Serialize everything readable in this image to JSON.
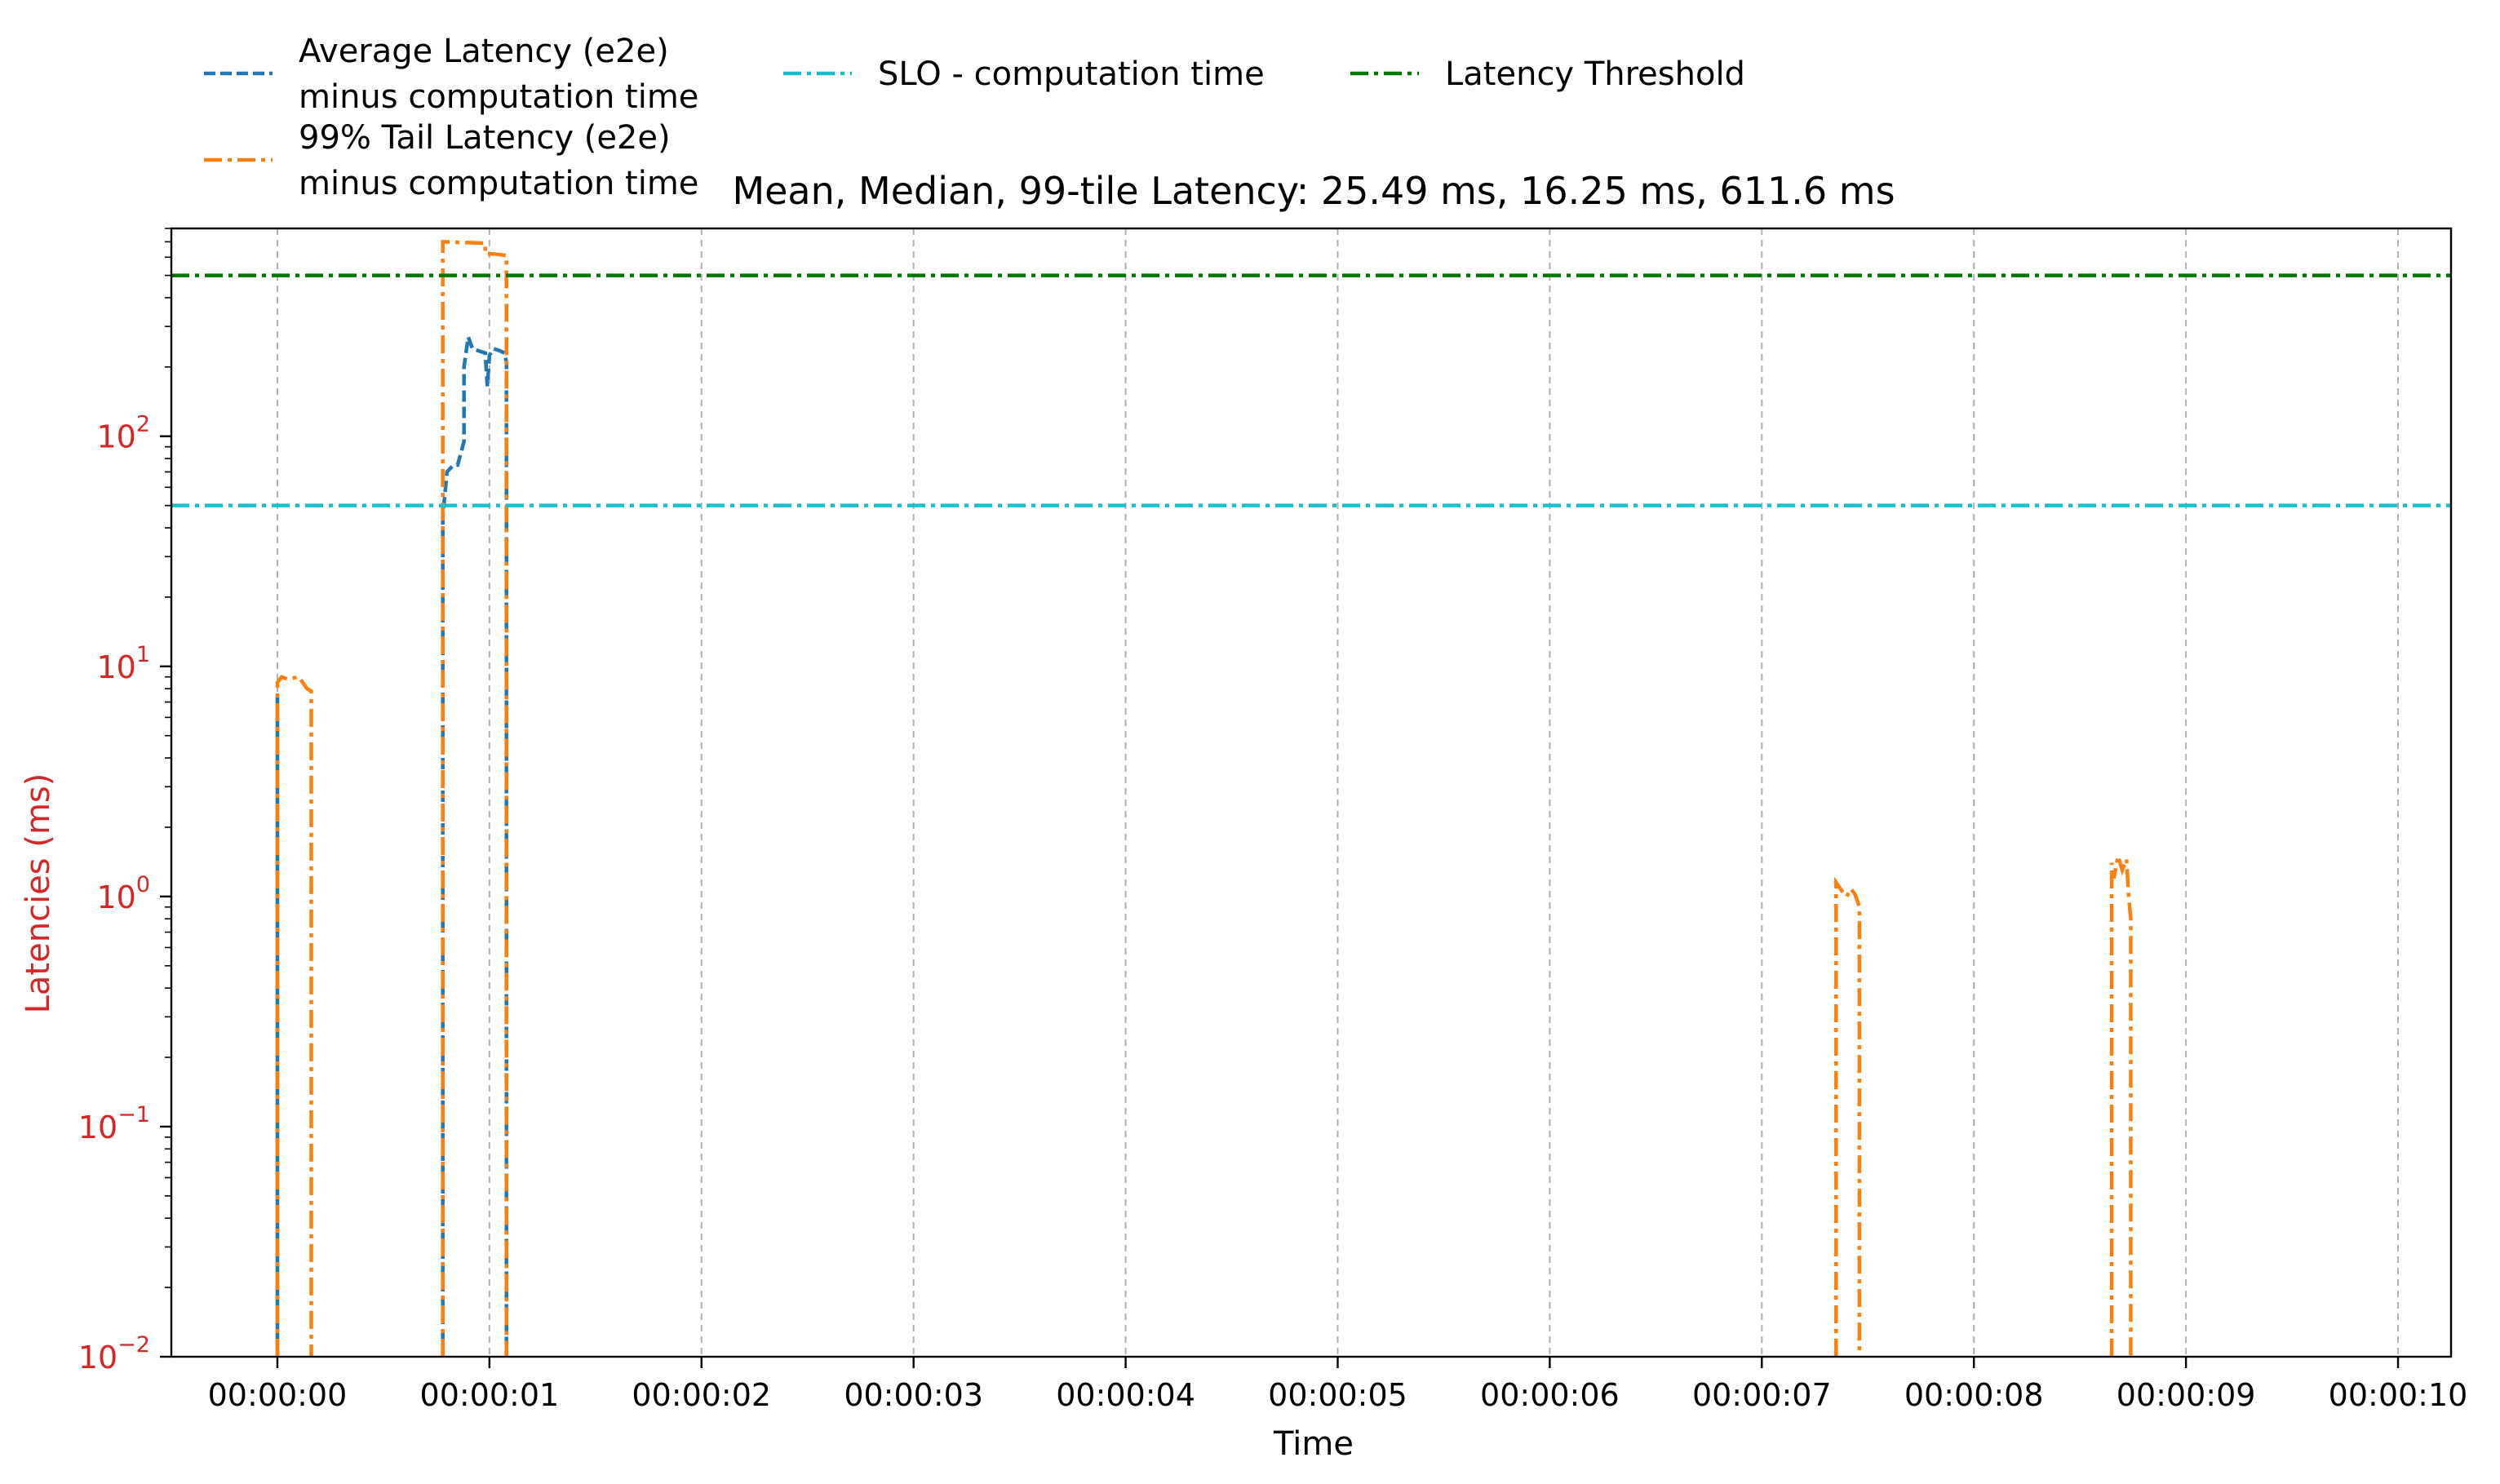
{
  "chart_data": {
    "type": "line",
    "title": "Mean, Median, 99-tile Latency: 25.49 ms, 16.25 ms, 611.6 ms",
    "xlabel": "Time",
    "ylabel": "Latencies (ms)",
    "xlim": [
      -0.5,
      10.25
    ],
    "ylim": [
      0.01,
      800
    ],
    "yscale": "log",
    "grid": "vertical dashed gray lines at x ticks",
    "legend_placement": "above plot, top-left, 3 columns",
    "x_ticks": [
      0,
      1,
      2,
      3,
      4,
      5,
      6,
      7,
      8,
      9,
      10
    ],
    "x_tick_labels": [
      "00:00:00",
      "00:00:01",
      "00:00:02",
      "00:00:03",
      "00:00:04",
      "00:00:05",
      "00:00:06",
      "00:00:07",
      "00:00:08",
      "00:00:09",
      "00:00:10"
    ],
    "y_ticks": [
      0.01,
      0.1,
      1,
      10,
      100
    ],
    "y_tick_labels": [
      {
        "base": "10",
        "exp": "−2"
      },
      {
        "base": "10",
        "exp": "−1"
      },
      {
        "base": "10",
        "exp": "0"
      },
      {
        "base": "10",
        "exp": "1"
      },
      {
        "base": "10",
        "exp": "2"
      }
    ],
    "series": [
      {
        "name": "Average Latency (e2e)\nminus computation time",
        "color": "#1f77b4",
        "dash": "dashed",
        "segments": [
          [
            [
              0.0,
              0.01
            ],
            [
              0.0,
              7.5
            ],
            [
              0.0,
              0.01
            ]
          ],
          [
            [
              0.78,
              0.01
            ],
            [
              0.78,
              45
            ],
            [
              0.8,
              70
            ],
            [
              0.83,
              75
            ],
            [
              0.85,
              75
            ],
            [
              0.88,
              95
            ],
            [
              0.88,
              200
            ],
            [
              0.9,
              270
            ],
            [
              0.92,
              240
            ],
            [
              0.95,
              235
            ],
            [
              0.98,
              230
            ],
            [
              0.99,
              165
            ],
            [
              1.0,
              225
            ],
            [
              1.02,
              240
            ],
            [
              1.05,
              235
            ],
            [
              1.07,
              230
            ],
            [
              1.08,
              210
            ],
            [
              1.08,
              0.01
            ]
          ]
        ]
      },
      {
        "name": "99% Tail Latency (e2e)\nminus computation time",
        "color": "#ff7f0e",
        "dash": "dashdot",
        "segments": [
          [
            [
              0.0,
              0.01
            ],
            [
              0.0,
              8.5
            ],
            [
              0.02,
              9.0
            ],
            [
              0.05,
              8.8
            ],
            [
              0.1,
              9.0
            ],
            [
              0.12,
              8.5
            ],
            [
              0.14,
              8.0
            ],
            [
              0.16,
              7.8
            ],
            [
              0.16,
              0.01
            ]
          ],
          [
            [
              0.78,
              0.01
            ],
            [
              0.78,
              700
            ],
            [
              0.98,
              690
            ],
            [
              0.98,
              620
            ],
            [
              1.02,
              620
            ],
            [
              1.08,
              610
            ],
            [
              1.08,
              0.01
            ]
          ],
          [
            [
              7.35,
              0.01
            ],
            [
              7.35,
              1.15
            ],
            [
              7.38,
              1.05
            ],
            [
              7.4,
              1.0
            ],
            [
              7.42,
              1.08
            ],
            [
              7.44,
              1.02
            ],
            [
              7.46,
              0.9
            ],
            [
              7.46,
              0.01
            ]
          ],
          [
            [
              8.65,
              0.01
            ],
            [
              8.65,
              1.4
            ],
            [
              8.66,
              1.2
            ],
            [
              8.68,
              1.5
            ],
            [
              8.7,
              1.3
            ],
            [
              8.72,
              1.45
            ],
            [
              8.73,
              1.0
            ],
            [
              8.74,
              0.8
            ],
            [
              8.74,
              0.01
            ]
          ]
        ]
      },
      {
        "name": "SLO - computation time",
        "color": "#17becf",
        "dash": "dashdot",
        "constant": 50
      },
      {
        "name": "Latency Threshold",
        "color": "#007800",
        "dash": "dashdot",
        "constant": 500
      }
    ]
  }
}
